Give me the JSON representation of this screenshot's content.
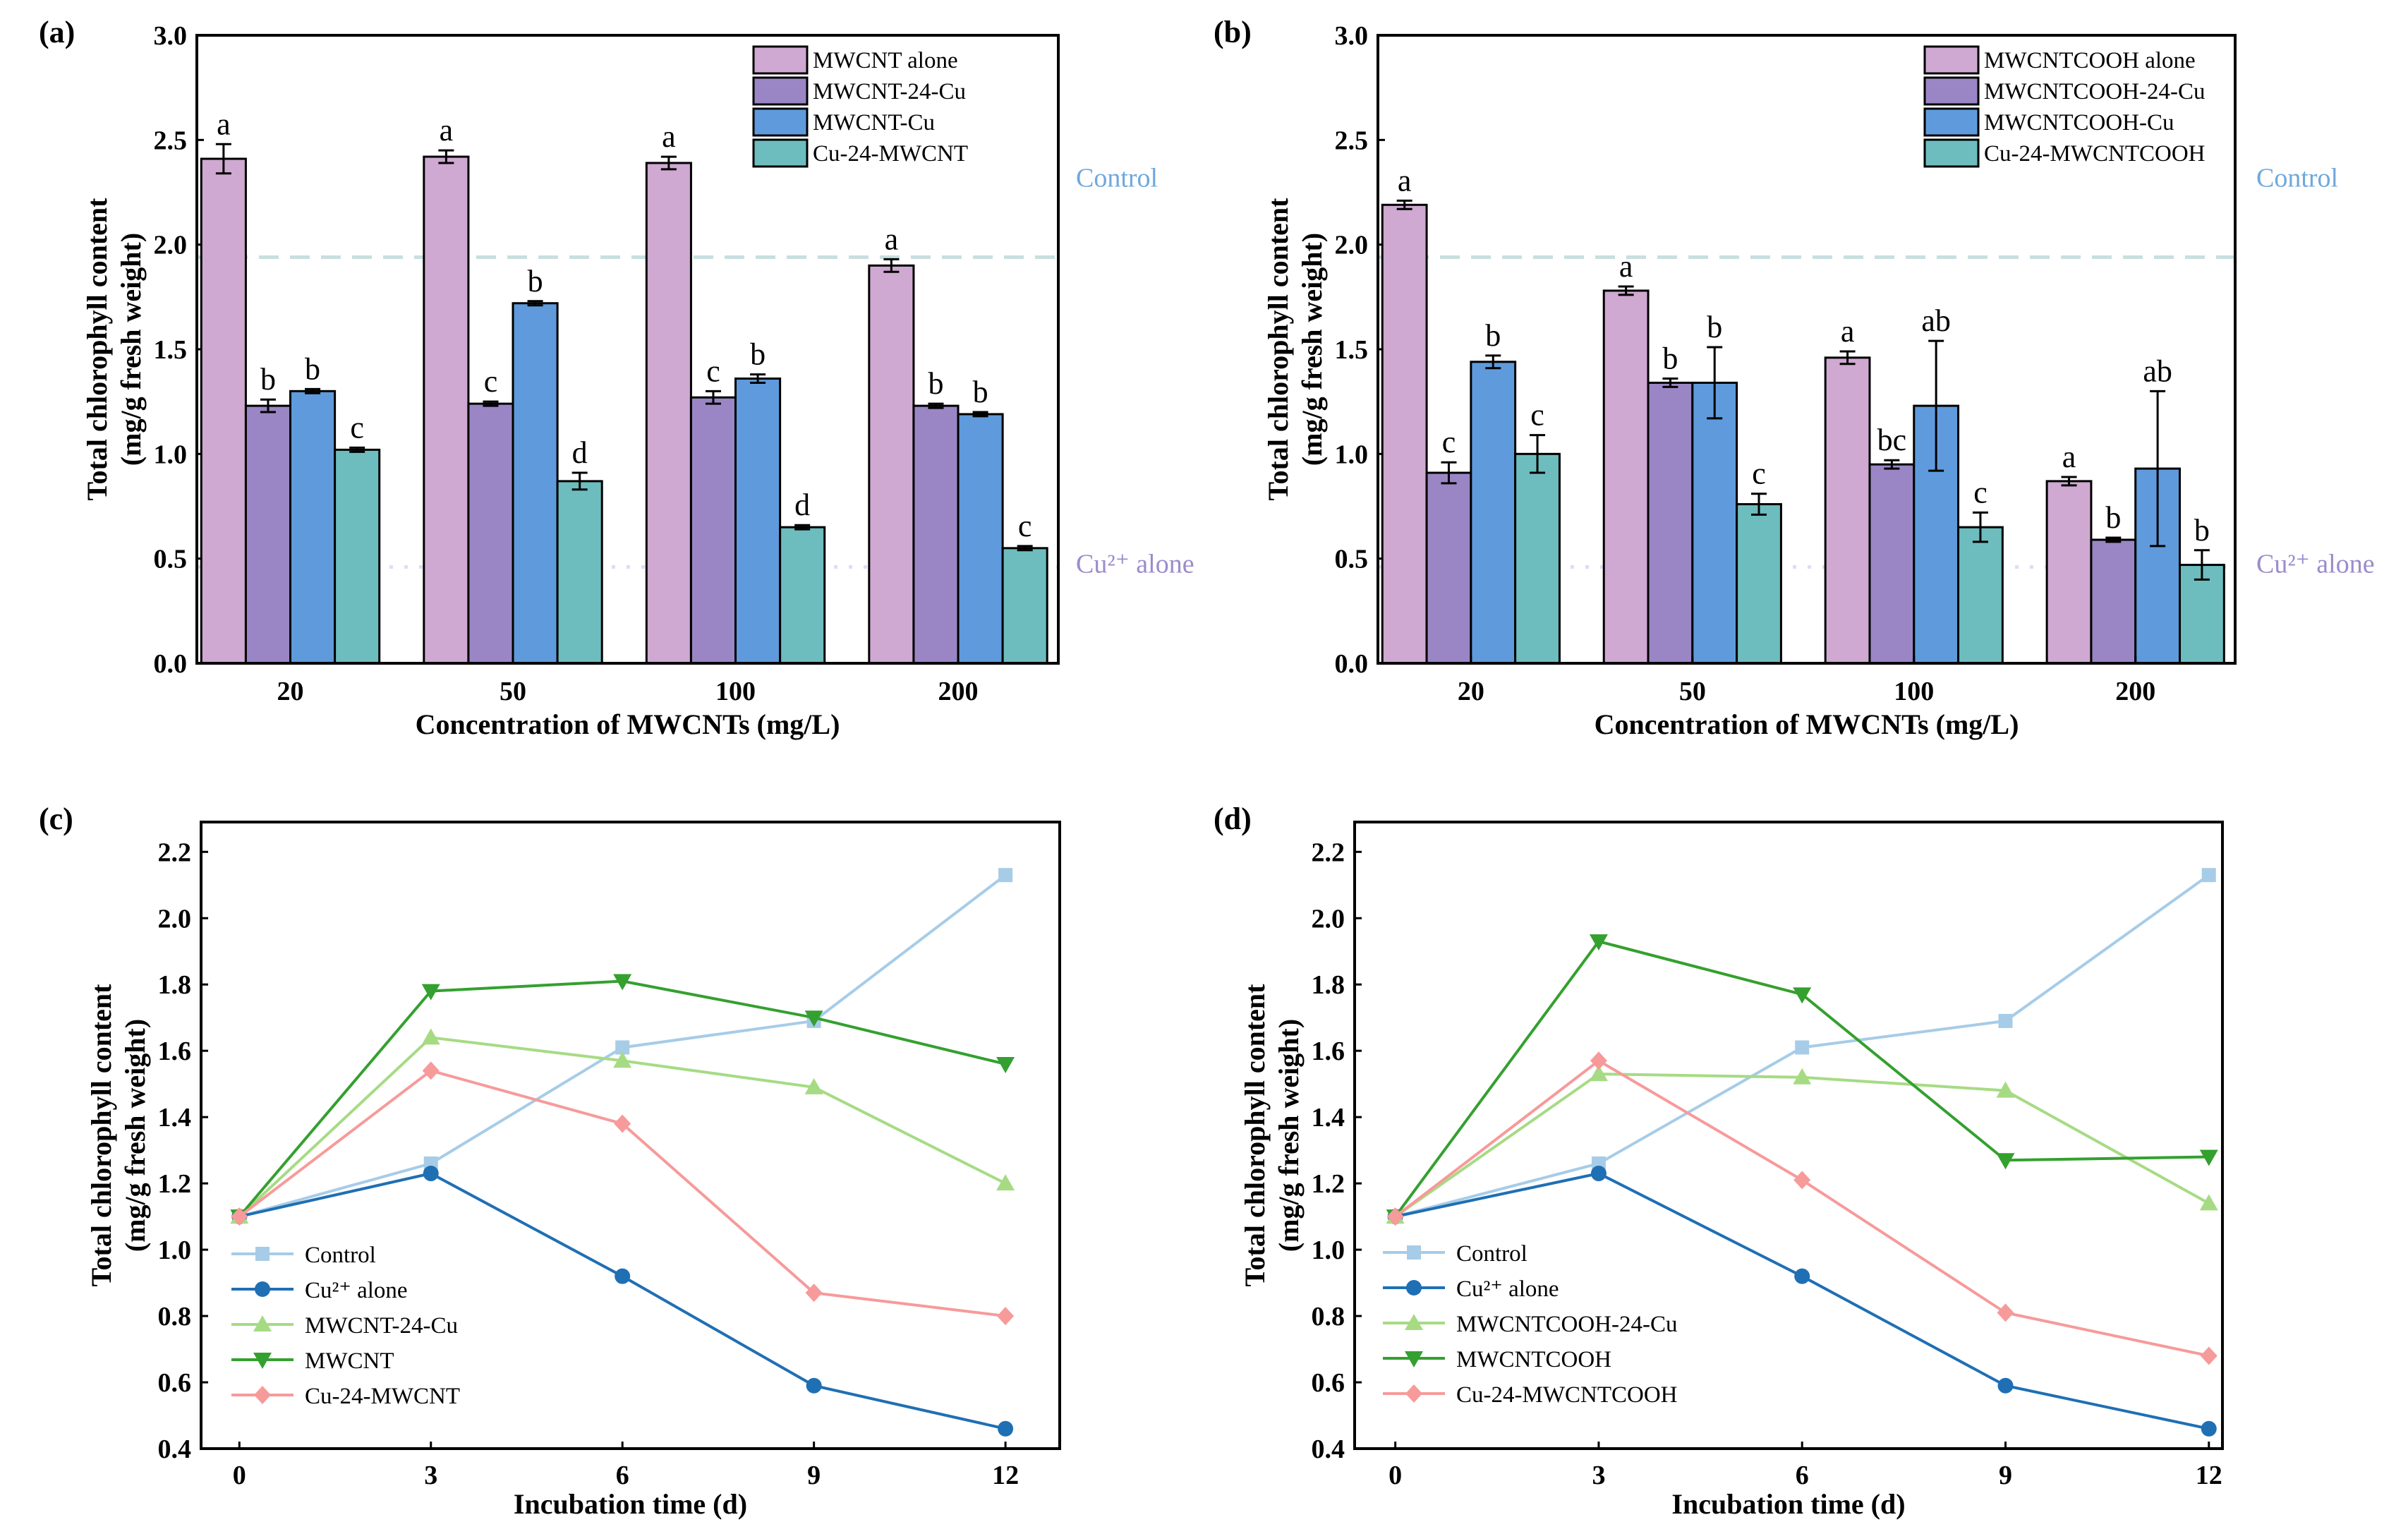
{
  "chart_data": [
    {
      "panel": "(a)",
      "type": "bar",
      "categories": [
        "20",
        "50",
        "100",
        "200"
      ],
      "xlabel": "Concentration of MWCNTs (mg/L)",
      "ylabel": [
        "Total chlorophyll content",
        "(mg/g fresh weight)"
      ],
      "ylim": [
        0,
        3.0
      ],
      "yticks": [
        "0.0",
        "0.5",
        "1.0",
        "1.5",
        "2.0",
        "2.5",
        "3.0"
      ],
      "legend_position": "top-right",
      "series": [
        {
          "name": "MWCNT alone",
          "color": "#cfa9d1",
          "values": [
            2.41,
            2.42,
            2.39,
            1.9
          ],
          "errors": [
            0.07,
            0.03,
            0.03,
            0.03
          ],
          "letters": [
            "a",
            "a",
            "a",
            "a"
          ]
        },
        {
          "name": "MWCNT-24-Cu",
          "color": "#9a86c4",
          "values": [
            1.23,
            1.24,
            1.27,
            1.23
          ],
          "errors": [
            0.03,
            0.01,
            0.03,
            0.01
          ],
          "letters": [
            "b",
            "c",
            "c",
            "b"
          ]
        },
        {
          "name": "MWCNT-Cu",
          "color": "#5f9bdc",
          "values": [
            1.3,
            1.72,
            1.36,
            1.19
          ],
          "errors": [
            0.01,
            0.01,
            0.02,
            0.01
          ],
          "letters": [
            "b",
            "b",
            "b",
            "b"
          ]
        },
        {
          "name": "Cu-24-MWCNT",
          "color": "#6dbdbf",
          "values": [
            1.02,
            0.87,
            0.65,
            0.55
          ],
          "errors": [
            0.01,
            0.04,
            0.01,
            0.01
          ],
          "letters": [
            "c",
            "d",
            "d",
            "c"
          ]
        }
      ],
      "reference_lines": [
        {
          "label": "Control",
          "value": 1.94,
          "style": "dashed",
          "color": "#c8dfe0",
          "label_color": "#6fa8dc"
        },
        {
          "label": "Cu²⁺ alone",
          "value": 0.46,
          "style": "dotted",
          "color": "#e2dbf3",
          "label_color": "#9b8ccc"
        }
      ]
    },
    {
      "panel": "(b)",
      "type": "bar",
      "categories": [
        "20",
        "50",
        "100",
        "200"
      ],
      "xlabel": "Concentration of MWCNTs (mg/L)",
      "ylabel": [
        "Total chlorophyll content",
        "(mg/g fresh weight)"
      ],
      "ylim": [
        0,
        3.0
      ],
      "yticks": [
        "0.0",
        "0.5",
        "1.0",
        "1.5",
        "2.0",
        "2.5",
        "3.0"
      ],
      "legend_position": "top-right",
      "series": [
        {
          "name": "MWCNTCOOH alone",
          "color": "#cfa9d1",
          "values": [
            2.19,
            1.78,
            1.46,
            0.87
          ],
          "errors": [
            0.02,
            0.02,
            0.03,
            0.02
          ],
          "letters": [
            "a",
            "a",
            "a",
            "a"
          ]
        },
        {
          "name": "MWCNTCOOH-24-Cu",
          "color": "#9a86c4",
          "values": [
            0.91,
            1.34,
            0.95,
            0.59
          ],
          "errors": [
            0.05,
            0.02,
            0.02,
            0.01
          ],
          "letters": [
            "c",
            "b",
            "bc",
            "b"
          ]
        },
        {
          "name": "MWCNTCOOH-Cu",
          "color": "#5f9bdc",
          "values": [
            1.44,
            1.34,
            1.23,
            0.93
          ],
          "errors": [
            0.03,
            0.17,
            0.31,
            0.37
          ],
          "letters": [
            "b",
            "b",
            "ab",
            "ab"
          ]
        },
        {
          "name": "Cu-24-MWCNTCOOH",
          "color": "#6dbdbf",
          "values": [
            1.0,
            0.76,
            0.65,
            0.47
          ],
          "errors": [
            0.09,
            0.05,
            0.07,
            0.07
          ],
          "letters": [
            "c",
            "c",
            "c",
            "b"
          ]
        }
      ],
      "reference_lines": [
        {
          "label": "Control",
          "value": 1.94,
          "style": "dashed",
          "color": "#c8dfe0",
          "label_color": "#6fa8dc"
        },
        {
          "label": "Cu²⁺ alone",
          "value": 0.46,
          "style": "dotted",
          "color": "#e2dbf3",
          "label_color": "#9b8ccc"
        }
      ]
    },
    {
      "panel": "(c)",
      "type": "line",
      "x": [
        0,
        3,
        6,
        9,
        12
      ],
      "xticks": [
        "0",
        "3",
        "6",
        "9",
        "12"
      ],
      "xlim": [
        -0.6,
        12.85
      ],
      "xlabel": "Incubation time (d)",
      "ylabel": [
        "Total chlorophyll content",
        "(mg/g fresh weight)"
      ],
      "ylim": [
        0.4,
        2.29
      ],
      "yticks": [
        "0.4",
        "0.6",
        "0.8",
        "1.0",
        "1.2",
        "1.4",
        "1.6",
        "1.8",
        "2.0",
        "2.2"
      ],
      "legend_position": "bottom-left",
      "series": [
        {
          "name": "Control",
          "color": "#a6cce8",
          "marker": "square",
          "values": [
            1.1,
            1.26,
            1.61,
            1.69,
            2.13
          ]
        },
        {
          "name": "Cu²⁺ alone",
          "color": "#1f6fb4",
          "marker": "circle",
          "values": [
            1.1,
            1.23,
            0.92,
            0.59,
            0.46
          ]
        },
        {
          "name": "MWCNT-24-Cu",
          "color": "#a6db84",
          "marker": "triangle-up",
          "values": [
            1.1,
            1.64,
            1.57,
            1.49,
            1.2
          ]
        },
        {
          "name": "MWCNT",
          "color": "#34a02f",
          "marker": "triangle-down",
          "values": [
            1.1,
            1.78,
            1.81,
            1.7,
            1.56
          ]
        },
        {
          "name": "Cu-24-MWCNT",
          "color": "#f79a9a",
          "marker": "diamond",
          "values": [
            1.1,
            1.54,
            1.38,
            0.87,
            0.8
          ]
        }
      ]
    },
    {
      "panel": "(d)",
      "type": "line",
      "x": [
        0,
        3,
        6,
        9,
        12
      ],
      "xticks": [
        "0",
        "3",
        "6",
        "9",
        "12"
      ],
      "xlim": [
        -0.6,
        12.2
      ],
      "xlabel": "Incubation time (d)",
      "ylabel": [
        "Total chlorophyll content",
        "(mg/g fresh weight)"
      ],
      "ylim": [
        0.4,
        2.29
      ],
      "yticks": [
        "0.4",
        "0.6",
        "0.8",
        "1.0",
        "1.2",
        "1.4",
        "1.6",
        "1.8",
        "2.0",
        "2.2"
      ],
      "legend_position": "bottom-left",
      "series": [
        {
          "name": "Control",
          "color": "#a6cce8",
          "marker": "square",
          "values": [
            1.1,
            1.26,
            1.61,
            1.69,
            2.13
          ]
        },
        {
          "name": "Cu²⁺ alone",
          "color": "#1f6fb4",
          "marker": "circle",
          "values": [
            1.1,
            1.23,
            0.92,
            0.59,
            0.46
          ]
        },
        {
          "name": "MWCNTCOOH-24-Cu",
          "color": "#a6db84",
          "marker": "triangle-up",
          "values": [
            1.1,
            1.53,
            1.52,
            1.48,
            1.14
          ]
        },
        {
          "name": "MWCNTCOOH",
          "color": "#34a02f",
          "marker": "triangle-down",
          "values": [
            1.1,
            1.93,
            1.77,
            1.27,
            1.28
          ]
        },
        {
          "name": "Cu-24-MWCNTCOOH",
          "color": "#f79a9a",
          "marker": "diamond",
          "values": [
            1.1,
            1.57,
            1.21,
            0.81,
            0.68
          ]
        }
      ]
    }
  ]
}
